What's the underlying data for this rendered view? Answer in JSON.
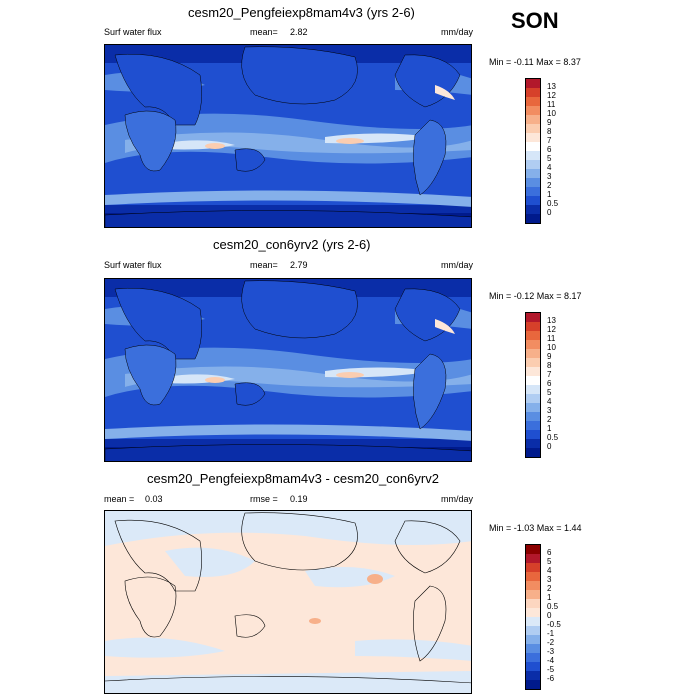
{
  "season": "SON",
  "panels": [
    {
      "title": "cesm20_Pengfeiexp8mam4v3 (yrs 2-6)",
      "left_label": "Surf water flux",
      "mean_label": "mean=",
      "mean_value": "2.82",
      "units": "mm/day",
      "minmax": "Min = -0.11 Max = 8.37",
      "levels": [
        "13",
        "12",
        "11",
        "10",
        "9",
        "8",
        "7",
        "6",
        "5",
        "4",
        "3",
        "2",
        "1",
        "0.5",
        "0"
      ],
      "colors": [
        "#b2182b",
        "#d6402a",
        "#e8673d",
        "#f28d61",
        "#f7b08a",
        "#fbcdb0",
        "#fde7d9",
        "#ffffff",
        "#d6e6f8",
        "#b0cdf2",
        "#85b0ea",
        "#5a8ee2",
        "#3b6fdc",
        "#1f4fd0",
        "#0a2da8",
        "#001a8c"
      ]
    },
    {
      "title": "cesm20_con6yrv2 (yrs 2-6)",
      "left_label": "Surf water flux",
      "mean_label": "mean=",
      "mean_value": "2.79",
      "units": "mm/day",
      "minmax": "Min = -0.12 Max = 8.17",
      "levels": [
        "13",
        "12",
        "11",
        "10",
        "9",
        "8",
        "7",
        "6",
        "5",
        "4",
        "3",
        "2",
        "1",
        "0.5",
        "0"
      ],
      "colors": [
        "#b2182b",
        "#d6402a",
        "#e8673d",
        "#f28d61",
        "#f7b08a",
        "#fbcdb0",
        "#fde7d9",
        "#ffffff",
        "#d6e6f8",
        "#b0cdf2",
        "#85b0ea",
        "#5a8ee2",
        "#3b6fdc",
        "#1f4fd0",
        "#0a2da8",
        "#001a8c"
      ]
    },
    {
      "title": "cesm20_Pengfeiexp8mam4v3 - cesm20_con6yrv2",
      "left_label": "mean =",
      "left_value": "0.03",
      "mean_label": "rmse =",
      "mean_value": "0.19",
      "units": "mm/day",
      "minmax": "Min = -1.03 Max = 1.44",
      "levels": [
        "6",
        "5",
        "4",
        "3",
        "2",
        "1",
        "0.5",
        "0",
        "-0.5",
        "-1",
        "-2",
        "-3",
        "-4",
        "-5",
        "-6"
      ],
      "colors": [
        "#8b0000",
        "#b2182b",
        "#d6402a",
        "#e8673d",
        "#f28d61",
        "#f7b08a",
        "#fcd6c0",
        "#fde7d9",
        "#dbe9f8",
        "#b0cdf2",
        "#85b0ea",
        "#5a8ee2",
        "#3b6fdc",
        "#1f4fd0",
        "#0a2da8",
        "#001a8c"
      ]
    }
  ]
}
